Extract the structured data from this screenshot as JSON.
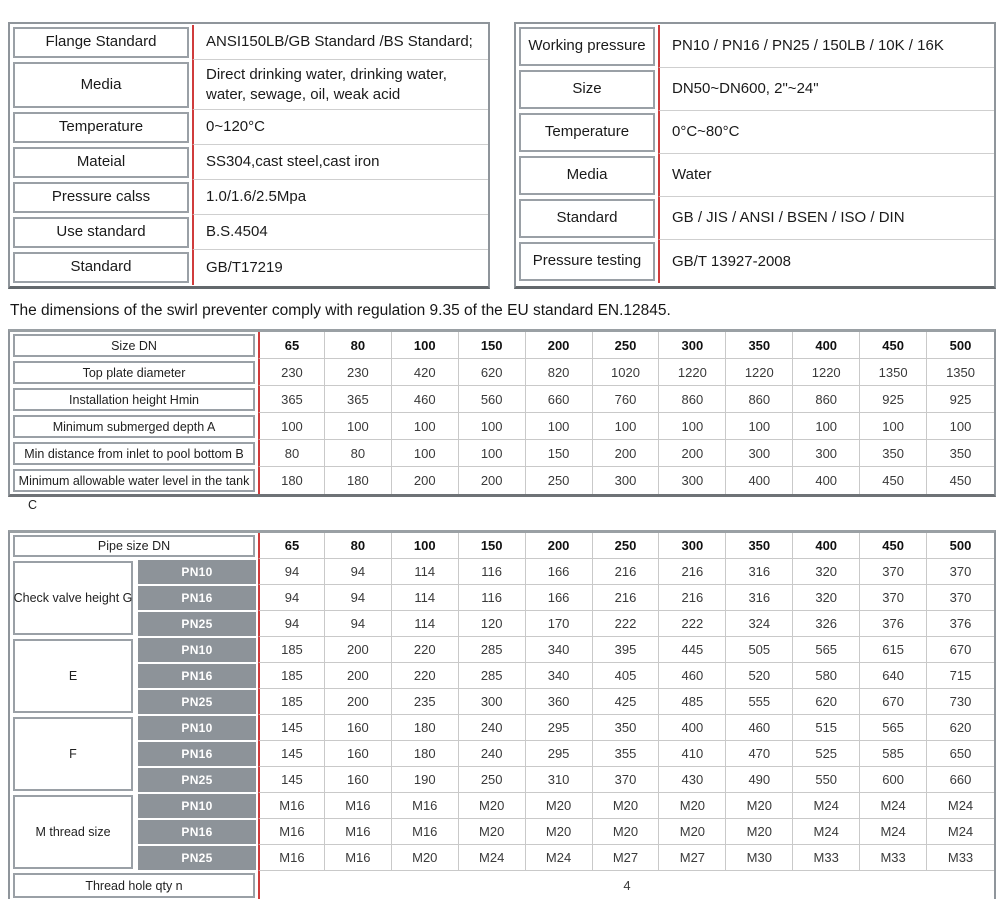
{
  "colors": {
    "accent_red": "#d03c3c",
    "pn_gray": "#8d9399",
    "border_gray": "#9aa0a6"
  },
  "spec_left": {
    "rows": [
      {
        "label": "Flange Standard",
        "value": "ANSI150LB/GB Standard /BS Standard;"
      },
      {
        "label": "Media",
        "value": "Direct drinking water, drinking water, water, sewage, oil, weak acid"
      },
      {
        "label": "Temperature",
        "value": "0~120°C"
      },
      {
        "label": "Mateial",
        "value": "SS304,cast steel,cast iron"
      },
      {
        "label": "Pressure calss",
        "value": "1.0/1.6/2.5Mpa"
      },
      {
        "label": "Use standard",
        "value": "B.S.4504"
      },
      {
        "label": "Standard",
        "value": "GB/T17219"
      }
    ]
  },
  "spec_right": {
    "rows": [
      {
        "label": "Working pressure",
        "value": "PN10 / PN16 / PN25 / 150LB / 10K / 16K"
      },
      {
        "label": "Size",
        "value": "DN50~DN600, 2\"~24\""
      },
      {
        "label": "Temperature",
        "value": "0°C~80°C"
      },
      {
        "label": "Media",
        "value": "Water"
      },
      {
        "label": "Standard",
        "value": "GB / JIS / ANSI / BSEN / ISO / DIN"
      },
      {
        "label": "Pressure testing",
        "value": "GB/T 13927-2008"
      }
    ]
  },
  "note": "The dimensions of the swirl preventer comply with regulation 9.35 of the EU standard EN.12845.",
  "dimensions_table": {
    "header_label": "Size DN",
    "columns": [
      "65",
      "80",
      "100",
      "150",
      "200",
      "250",
      "300",
      "350",
      "400",
      "450",
      "500"
    ],
    "rows": [
      {
        "label": "Top plate diameter",
        "values": [
          "230",
          "230",
          "420",
          "620",
          "820",
          "1020",
          "1220",
          "1220",
          "1220",
          "1350",
          "1350"
        ]
      },
      {
        "label": "Installation height Hmin",
        "values": [
          "365",
          "365",
          "460",
          "560",
          "660",
          "760",
          "860",
          "860",
          "860",
          "925",
          "925"
        ]
      },
      {
        "label": "Minimum submerged depth A",
        "values": [
          "100",
          "100",
          "100",
          "100",
          "100",
          "100",
          "100",
          "100",
          "100",
          "100",
          "100"
        ]
      },
      {
        "label": "Min distance from inlet to pool bottom B",
        "values": [
          "80",
          "80",
          "100",
          "100",
          "150",
          "200",
          "200",
          "300",
          "300",
          "350",
          "350"
        ]
      },
      {
        "label": "Minimum allowable water level in the tank",
        "values": [
          "180",
          "180",
          "200",
          "200",
          "250",
          "300",
          "300",
          "400",
          "400",
          "450",
          "450"
        ]
      }
    ],
    "footnote": "C"
  },
  "pipe_table": {
    "header_label": "Pipe size DN",
    "columns": [
      "65",
      "80",
      "100",
      "150",
      "200",
      "250",
      "300",
      "350",
      "400",
      "450",
      "500"
    ],
    "groups": [
      {
        "label": "Check valve height G",
        "rows": [
          {
            "pn": "PN10",
            "values": [
              "94",
              "94",
              "114",
              "116",
              "166",
              "216",
              "216",
              "316",
              "320",
              "370",
              "370"
            ]
          },
          {
            "pn": "PN16",
            "values": [
              "94",
              "94",
              "114",
              "116",
              "166",
              "216",
              "216",
              "316",
              "320",
              "370",
              "370"
            ]
          },
          {
            "pn": "PN25",
            "values": [
              "94",
              "94",
              "114",
              "120",
              "170",
              "222",
              "222",
              "324",
              "326",
              "376",
              "376"
            ]
          }
        ]
      },
      {
        "label": "E",
        "rows": [
          {
            "pn": "PN10",
            "values": [
              "185",
              "200",
              "220",
              "285",
              "340",
              "395",
              "445",
              "505",
              "565",
              "615",
              "670"
            ]
          },
          {
            "pn": "PN16",
            "values": [
              "185",
              "200",
              "220",
              "285",
              "340",
              "405",
              "460",
              "520",
              "580",
              "640",
              "715"
            ]
          },
          {
            "pn": "PN25",
            "values": [
              "185",
              "200",
              "235",
              "300",
              "360",
              "425",
              "485",
              "555",
              "620",
              "670",
              "730"
            ]
          }
        ]
      },
      {
        "label": "F",
        "rows": [
          {
            "pn": "PN10",
            "values": [
              "145",
              "160",
              "180",
              "240",
              "295",
              "350",
              "400",
              "460",
              "515",
              "565",
              "620"
            ]
          },
          {
            "pn": "PN16",
            "values": [
              "145",
              "160",
              "180",
              "240",
              "295",
              "355",
              "410",
              "470",
              "525",
              "585",
              "650"
            ]
          },
          {
            "pn": "PN25",
            "values": [
              "145",
              "160",
              "190",
              "250",
              "310",
              "370",
              "430",
              "490",
              "550",
              "600",
              "660"
            ]
          }
        ]
      },
      {
        "label": "M thread size",
        "rows": [
          {
            "pn": "PN10",
            "values": [
              "M16",
              "M16",
              "M16",
              "M20",
              "M20",
              "M20",
              "M20",
              "M20",
              "M24",
              "M24",
              "M24"
            ]
          },
          {
            "pn": "PN16",
            "values": [
              "M16",
              "M16",
              "M16",
              "M20",
              "M20",
              "M20",
              "M20",
              "M20",
              "M24",
              "M24",
              "M24"
            ]
          },
          {
            "pn": "PN25",
            "values": [
              "M16",
              "M16",
              "M20",
              "M24",
              "M24",
              "M27",
              "M27",
              "M30",
              "M33",
              "M33",
              "M33"
            ]
          }
        ]
      },
      {
        "label": "Thread hole qty n",
        "rows": []
      }
    ],
    "footer": {
      "label": "Thread hole qty n",
      "value": "4"
    }
  }
}
